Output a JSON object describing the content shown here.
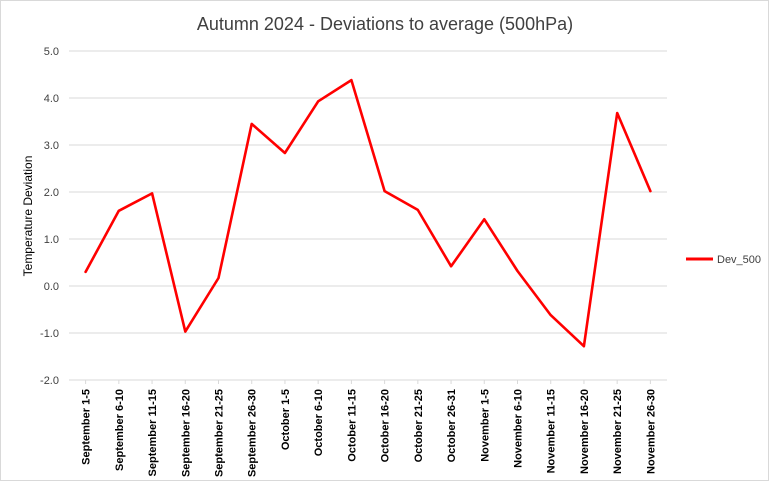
{
  "chart_data": {
    "type": "line",
    "title": "Autumn 2024 - Deviations to average (500hPa)",
    "xlabel": "",
    "ylabel": "Temperature Deviation",
    "ylim": [
      -2.0,
      5.0
    ],
    "yticks": [
      "5.0",
      "4.0",
      "3.0",
      "2.0",
      "1.0",
      "0.0",
      "-1.0",
      "-2.0"
    ],
    "ytick_values": [
      5,
      4,
      3,
      2,
      1,
      0,
      -1,
      -2
    ],
    "grid": true,
    "legend_position": "right",
    "categories": [
      "September 1-5",
      "September 6-10",
      "September 11-15",
      "September 16-20",
      "September 21-25",
      "September 26-30",
      "October 1-5",
      "October 6-10",
      "October 11-15",
      "October 16-20",
      "October 21-25",
      "October 26-31",
      "November 1-5",
      "November 6-10",
      "November 11-15",
      "November 16-20",
      "November 21-25",
      "November 26-30"
    ],
    "series": [
      {
        "name": "Dev_500",
        "color": "#ff0000",
        "values": [
          0.3,
          1.6,
          1.97,
          -0.97,
          0.17,
          3.45,
          2.83,
          3.93,
          4.38,
          2.02,
          1.62,
          0.42,
          1.42,
          0.32,
          -0.62,
          -1.28,
          3.68,
          2.02
        ]
      }
    ]
  }
}
